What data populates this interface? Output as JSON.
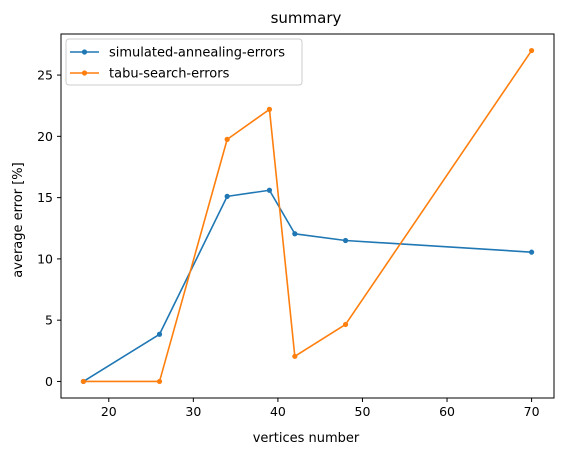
{
  "chart_data": {
    "type": "line",
    "title": "summary",
    "xlabel": "vertices number",
    "ylabel": "average error [%]",
    "xlim": [
      14.35,
      72.65
    ],
    "ylim": [
      -1.35,
      28.35
    ],
    "xticks": [
      20,
      30,
      40,
      50,
      60,
      70
    ],
    "yticks": [
      0,
      5,
      10,
      15,
      20,
      25
    ],
    "grid": false,
    "legend_position": "top-left",
    "series": [
      {
        "name": "simulated-annealing-errors",
        "color": "#1f77b4",
        "x": [
          17,
          26,
          34,
          39,
          42,
          48,
          70
        ],
        "y": [
          0.0,
          3.85,
          15.1,
          15.6,
          12.05,
          11.5,
          10.55
        ]
      },
      {
        "name": "tabu-search-errors",
        "color": "#ff7f0e",
        "x": [
          17,
          26,
          34,
          39,
          42,
          48,
          70
        ],
        "y": [
          0.0,
          0.0,
          19.75,
          22.2,
          2.05,
          4.65,
          27.0
        ]
      }
    ]
  }
}
